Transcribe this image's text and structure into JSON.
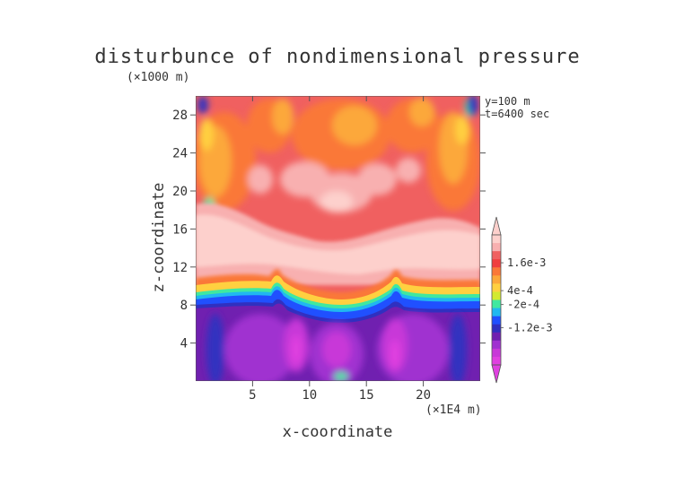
{
  "chart_data": {
    "type": "heatmap",
    "title": "disturbunce of nondimensional pressure",
    "ylabel": "z-coordinate",
    "xlabel": "x-coordinate",
    "y_scale_note": "(×1000 m)",
    "x_scale_note": "(×1E4 m)",
    "annotations": [
      "y=100 m",
      "t=6400 sec"
    ],
    "xlim": [
      0,
      25
    ],
    "ylim": [
      0,
      30
    ],
    "x_ticks": [
      5,
      10,
      15,
      20
    ],
    "y_ticks": [
      4,
      8,
      12,
      16,
      20,
      24,
      28
    ],
    "colorbar": {
      "labels": [
        {
          "text": "1.6e-3",
          "value": 0.0016
        },
        {
          "text": "4e-4",
          "value": 0.0004
        },
        {
          "text": "-2e-4",
          "value": -0.0002
        },
        {
          "text": "-1.2e-3",
          "value": -0.0012
        }
      ],
      "levels": [
        {
          "from": 0.0024,
          "to": 0.0028,
          "color": "#fdd0cc"
        },
        {
          "from": 0.002,
          "to": 0.0024,
          "color": "#f8b0b0"
        },
        {
          "from": 0.0016,
          "to": 0.002,
          "color": "#f06060"
        },
        {
          "from": 0.0012,
          "to": 0.0016,
          "color": "#f03e3e"
        },
        {
          "from": 0.0008,
          "to": 0.0012,
          "color": "#fa7838"
        },
        {
          "from": 0.0004,
          "to": 0.0008,
          "color": "#fca83a"
        },
        {
          "from": 0.0002,
          "to": 0.0004,
          "color": "#ffd040"
        },
        {
          "from": 0.0,
          "to": 0.0002,
          "color": "#d2ea30"
        },
        {
          "from": -0.0002,
          "to": 0.0,
          "color": "#40e8a0"
        },
        {
          "from": -0.0004,
          "to": -0.0002,
          "color": "#20b8f0"
        },
        {
          "from": -0.0008,
          "to": -0.0004,
          "color": "#2050ff"
        },
        {
          "from": -0.0012,
          "to": -0.0008,
          "color": "#3030c0"
        },
        {
          "from": -0.0016,
          "to": -0.0012,
          "color": "#7020b0"
        },
        {
          "from": -0.002,
          "to": -0.0016,
          "color": "#a030d0"
        },
        {
          "from": -0.0024,
          "to": -0.002,
          "color": "#c838d8"
        },
        {
          "from": -0.0028,
          "to": -0.0024,
          "color": "#e040e0"
        }
      ]
    },
    "regions": [
      {
        "z_from": 0,
        "z_to": 8,
        "value": -0.0015,
        "description": "low pressure layer"
      },
      {
        "z_from": 8,
        "z_to": 10,
        "value": 0.0001,
        "description": "sharp gradient layer"
      },
      {
        "z_from": 10,
        "z_to": 17,
        "value": 0.0025,
        "description": "high pressure layer"
      },
      {
        "z_from": 17,
        "z_to": 30,
        "value": 0.0012,
        "description": "mixed layer"
      }
    ]
  }
}
